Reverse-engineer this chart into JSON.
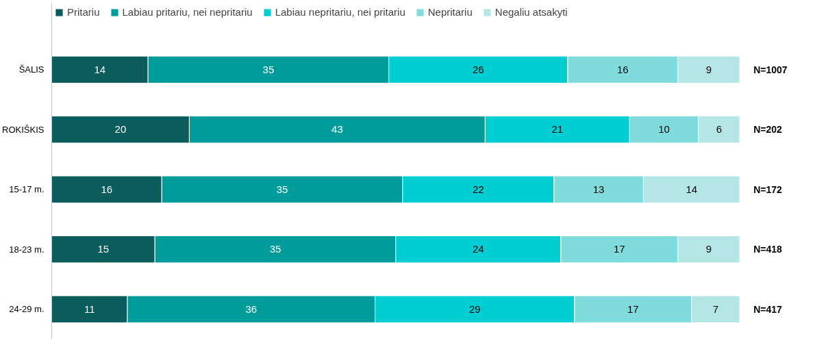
{
  "chart_data": {
    "type": "bar",
    "orientation": "horizontal",
    "stacked": true,
    "data_labels": true,
    "legend": "top",
    "grid": false,
    "tick_labels": "y",
    "categories": [
      "ŠALIS",
      "ROKIŠKIS",
      "15-17 m.",
      "18-23 m.",
      "24-29 m."
    ],
    "series": [
      {
        "name": "Pritariu",
        "color": "#0b5c5c",
        "values": [
          14,
          20,
          16,
          15,
          11
        ]
      },
      {
        "name": "Labiau pritariu, nei nepritariu",
        "color": "#009b9b",
        "values": [
          35,
          43,
          35,
          35,
          36
        ]
      },
      {
        "name": "Labiau nepritariu, nei pritariu",
        "color": "#00ced3",
        "values": [
          26,
          21,
          22,
          24,
          29
        ]
      },
      {
        "name": "Nepritariu",
        "color": "#80dcdc",
        "values": [
          16,
          10,
          13,
          17,
          17
        ]
      },
      {
        "name": "Negaliu atsakyti",
        "color": "#b5e6e6",
        "values": [
          9,
          6,
          14,
          9,
          7
        ]
      }
    ],
    "annotations": [
      "N=1007",
      "N=202",
      "N=172",
      "N=418",
      "N=417"
    ]
  }
}
